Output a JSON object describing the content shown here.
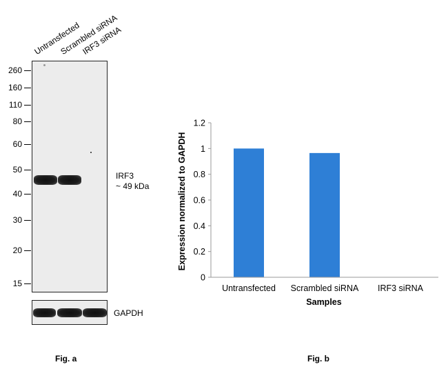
{
  "figure_a": {
    "lanes": [
      "Untransfected",
      "Scrambled siRNA",
      "IRF3 siRNA"
    ],
    "markers": [
      "260",
      "160",
      "110",
      "80",
      "60",
      "50",
      "40",
      "30",
      "20",
      "15"
    ],
    "target_label": "IRF3",
    "target_size": "~ 49 kDa",
    "loading_control": "GAPDH",
    "caption": "Fig. a"
  },
  "figure_b": {
    "caption": "Fig. b"
  },
  "colors": {
    "bar": "#2e7fd6",
    "band": "#151515",
    "blot_bg": "#ececec"
  },
  "chart_data": {
    "type": "bar",
    "categories": [
      "Untransfected",
      "Scrambled siRNA",
      "IRF3 siRNA"
    ],
    "values": [
      1.0,
      0.965,
      0.0
    ],
    "xlabel": "Samples",
    "ylabel": "Expression normalized to GAPDH",
    "ylim": [
      0,
      1.2
    ],
    "yticks": [
      "0",
      "0.2",
      "0.4",
      "0.6",
      "0.8",
      "1",
      "1.2"
    ],
    "grid": false,
    "legend": "none"
  }
}
